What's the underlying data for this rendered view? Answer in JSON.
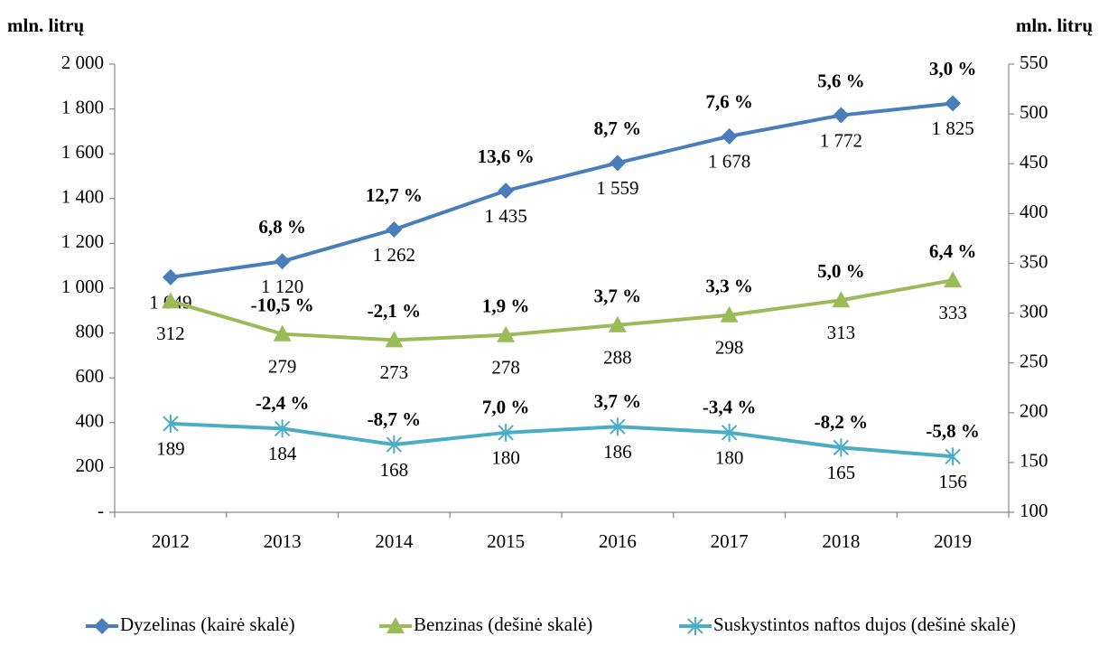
{
  "chart_data": {
    "type": "line",
    "y_label": "mln. litrų",
    "y2_label": "mln. litrų",
    "categories": [
      "2012",
      "2013",
      "2014",
      "2015",
      "2016",
      "2017",
      "2018",
      "2019"
    ],
    "ylim": [
      0,
      2000
    ],
    "yticks": [
      {
        "value": 0,
        "label": "-"
      },
      200,
      400,
      600,
      800,
      {
        "value": 1000,
        "label": "1 000"
      },
      {
        "value": 1200,
        "label": "1 200"
      },
      {
        "value": 1400,
        "label": "1 400"
      },
      {
        "value": 1600,
        "label": "1 600"
      },
      {
        "value": 1800,
        "label": "1 800"
      },
      {
        "value": 2000,
        "label": "2 000"
      }
    ],
    "y2lim": [
      100,
      550
    ],
    "y2ticks": [
      100,
      150,
      200,
      250,
      300,
      350,
      400,
      450,
      500,
      550
    ],
    "grid": false,
    "legend": "bottom",
    "series": [
      {
        "name": "Dyzelinas (kairė skalė)",
        "color": "#4a7ebb",
        "marker": "diamond",
        "values": [
          1049,
          1120,
          1262,
          1435,
          1559,
          1678,
          1772,
          1825
        ],
        "value_labels": [
          "1 049",
          "1 120",
          "1 262",
          "1 435",
          "1 559",
          "1 678",
          "1 772",
          "1 825"
        ],
        "change_labels": [
          null,
          "6,8 %",
          "12,7 %",
          "13,6 %",
          "8,7 %",
          "7,6 %",
          "5,6  %",
          "3,0 %"
        ]
      },
      {
        "name": "Benzinas (dešinė skalė)",
        "color": "#9bbb59",
        "marker": "triangle",
        "axis": "y2",
        "values": [
          312,
          279,
          273,
          278,
          288,
          298,
          313,
          333
        ],
        "change_labels": [
          null,
          "-10,5 %",
          "-2,1 %",
          "1,9 %",
          "3,7 %",
          "3,3 %",
          "5,0 %",
          "6,4 %"
        ]
      },
      {
        "name": "Suskystintos naftos dujos (dešinė skalė)",
        "color": "#4bacc6",
        "marker": "star",
        "axis": "y2",
        "values": [
          189,
          184,
          168,
          180,
          186,
          180,
          165,
          156
        ],
        "change_labels": [
          null,
          "-2,4 %",
          "-8,7 %",
          "7,0 %",
          "3,7 %",
          "-3,4 %",
          "-8,2 %",
          "-5,8 %"
        ]
      }
    ]
  }
}
